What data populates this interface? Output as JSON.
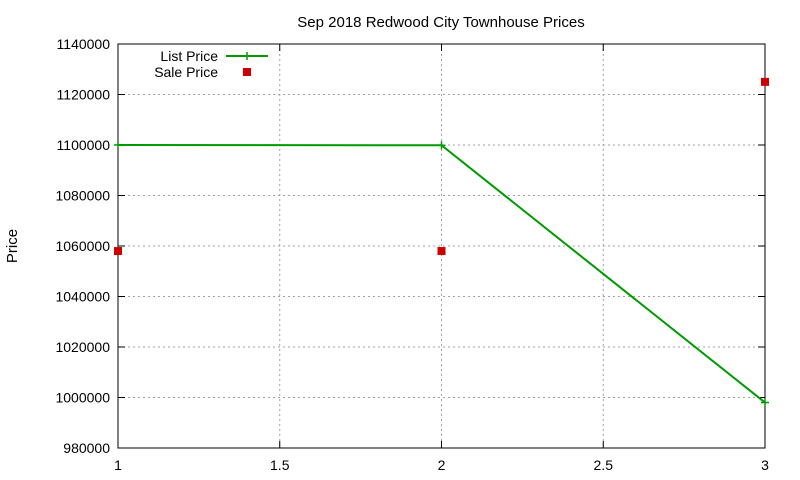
{
  "chart_data": {
    "type": "line",
    "title": "Sep 2018 Redwood City Townhouse Prices",
    "xlabel": "",
    "ylabel": "Price",
    "xlim": [
      1,
      3
    ],
    "ylim": [
      980000,
      1140000
    ],
    "xticks": [
      1,
      1.5,
      2,
      2.5,
      3
    ],
    "xtick_labels": [
      "1",
      "1.5",
      "2",
      "2.5",
      "3"
    ],
    "yticks": [
      980000,
      1000000,
      1020000,
      1040000,
      1060000,
      1080000,
      1100000,
      1120000,
      1140000
    ],
    "ytick_labels": [
      "980000",
      "1000000",
      "1020000",
      "1040000",
      "1060000",
      "1080000",
      "1100000",
      "1120000",
      "1140000"
    ],
    "grid": true,
    "legend_position": "top-left",
    "series": [
      {
        "name": "List Price",
        "style": "line-with-plus-markers",
        "color": "#009900",
        "points": [
          {
            "x": 1,
            "y": 1100000
          },
          {
            "x": 2,
            "y": 1099900
          },
          {
            "x": 3,
            "y": 998000
          }
        ]
      },
      {
        "name": "Sale Price",
        "style": "square-markers",
        "color": "#cc0000",
        "points": [
          {
            "x": 1,
            "y": 1058000
          },
          {
            "x": 2,
            "y": 1058000
          },
          {
            "x": 3,
            "y": 1125000
          }
        ]
      }
    ]
  }
}
